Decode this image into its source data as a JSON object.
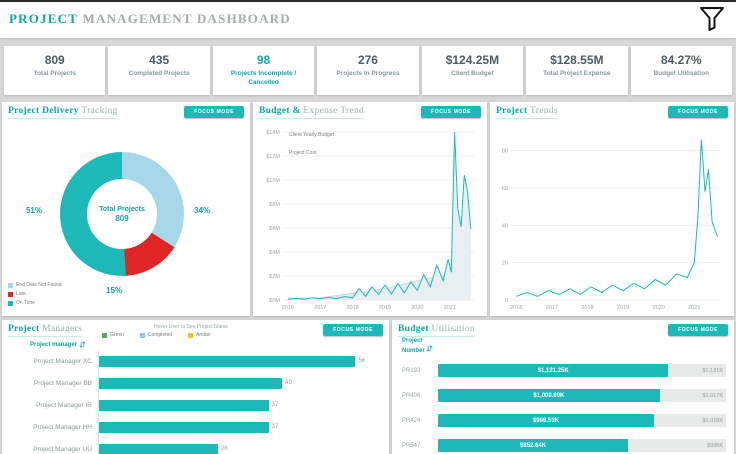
{
  "header": {
    "title_accent": "PROJECT",
    "title_rest": "MANAGEMENT DASHBOARD"
  },
  "focus_mode_label": "FOCUS MODE",
  "colors": {
    "teal": "#1db9b9",
    "light_blue": "#a7d8ea",
    "red": "#e02525",
    "green": "#4caf50",
    "amber": "#f2c80f",
    "completed_blue": "#8ecae6"
  },
  "kpis": [
    {
      "value": "809",
      "label": "Total Projects",
      "accent": false
    },
    {
      "value": "435",
      "label": "Completed Projects",
      "accent": false
    },
    {
      "value": "98",
      "label": "Projects Incomplete / Cancelled",
      "accent": true
    },
    {
      "value": "276",
      "label": "Projects In Progress",
      "accent": false
    },
    {
      "value": "$124.25M",
      "label": "Client Budget",
      "accent": false
    },
    {
      "value": "$128.55M",
      "label": "Total Project Expense",
      "accent": false
    },
    {
      "value": "84.27%",
      "label": "Budget Utilisation",
      "accent": false
    }
  ],
  "panels": {
    "delivery": {
      "title_accent": "Project Delivery",
      "title_rest": "Tracking"
    },
    "budget": {
      "title_accent": "Budget &",
      "title_rest": "Expense Trend"
    },
    "trends": {
      "title_accent": "Project",
      "title_rest": "Trends"
    },
    "managers": {
      "title_accent": "Project",
      "title_rest": "Managers"
    },
    "utilisation": {
      "title_accent": "Budget",
      "title_rest": "Utilisation"
    }
  },
  "chart_data": [
    {
      "type": "pie",
      "name": "project-delivery-tracking",
      "donut": true,
      "center_label": "Total Projects",
      "center_value": "809",
      "slices": [
        {
          "label": "End Date Not Found",
          "value": 34,
          "pct": "34%",
          "color": "#a7d8ea"
        },
        {
          "label": "Late",
          "value": 15,
          "pct": "15%",
          "color": "#e02525"
        },
        {
          "label": "On Time",
          "value": 51,
          "pct": "51%",
          "color": "#1db9b9"
        }
      ]
    },
    {
      "type": "line",
      "name": "budget-expense-trend",
      "title": "Budget & Expense Trend",
      "xlim": [
        2015.85,
        2021.75
      ],
      "ylim": [
        0,
        14
      ],
      "x_ticks": [
        {
          "v": 2016,
          "label": "2016"
        },
        {
          "v": 2017,
          "label": "2017"
        },
        {
          "v": 2018,
          "label": "2018"
        },
        {
          "v": 2019,
          "label": "2019"
        },
        {
          "v": 2020,
          "label": "2020"
        },
        {
          "v": 2021,
          "label": "2021"
        }
      ],
      "y_ticks": [
        {
          "v": 0,
          "label": "$0M"
        },
        {
          "v": 2,
          "label": "$2M"
        },
        {
          "v": 4,
          "label": "$4M"
        },
        {
          "v": 6,
          "label": "$6M"
        },
        {
          "v": 8,
          "label": "$8M"
        },
        {
          "v": 10,
          "label": "$10M"
        },
        {
          "v": 12,
          "label": "$12M"
        },
        {
          "v": 14,
          "label": "$14M"
        }
      ],
      "series": [
        {
          "name": "Client Yearly Budget",
          "color": "#c9d8de",
          "fill": "#e2ebee",
          "points": [
            [
              2016,
              0.12
            ],
            [
              2017,
              0.18
            ],
            [
              2018,
              0.55
            ],
            [
              2019,
              0.95
            ],
            [
              2020,
              1.6
            ],
            [
              2020.9,
              2.1
            ],
            [
              2021.05,
              1.8
            ],
            [
              2021.2,
              2.4
            ],
            [
              2021.4,
              2.0
            ],
            [
              2021.65,
              1.7
            ]
          ]
        },
        {
          "name": "Project Cost",
          "color": "#1db9b9",
          "fill": "#e9eff1",
          "points": [
            [
              2016,
              0.05
            ],
            [
              2016.25,
              0.15
            ],
            [
              2016.5,
              0.07
            ],
            [
              2016.75,
              0.18
            ],
            [
              2017,
              0.1
            ],
            [
              2017.25,
              0.22
            ],
            [
              2017.5,
              0.12
            ],
            [
              2017.75,
              0.28
            ],
            [
              2018,
              0.18
            ],
            [
              2018.2,
              0.95
            ],
            [
              2018.4,
              0.3
            ],
            [
              2018.6,
              1.1
            ],
            [
              2018.8,
              0.45
            ],
            [
              2019,
              1.25
            ],
            [
              2019.2,
              0.5
            ],
            [
              2019.4,
              1.35
            ],
            [
              2019.6,
              0.6
            ],
            [
              2019.8,
              1.5
            ],
            [
              2020,
              0.8
            ],
            [
              2020.2,
              2.1
            ],
            [
              2020.4,
              1.1
            ],
            [
              2020.6,
              2.9
            ],
            [
              2020.8,
              1.6
            ],
            [
              2020.95,
              3.4
            ],
            [
              2021.05,
              2.3
            ],
            [
              2021.15,
              14.0
            ],
            [
              2021.25,
              7.6
            ],
            [
              2021.35,
              6.1
            ],
            [
              2021.45,
              10.4
            ],
            [
              2021.55,
              9.1
            ],
            [
              2021.65,
              5.9
            ]
          ]
        }
      ]
    },
    {
      "type": "line",
      "name": "project-trends",
      "title": "Project Trends",
      "xlim": [
        2015.85,
        2021.75
      ],
      "ylim": [
        0,
        90
      ],
      "x_ticks": [
        {
          "v": 2016,
          "label": "2016"
        },
        {
          "v": 2017,
          "label": "2017"
        },
        {
          "v": 2018,
          "label": "2018"
        },
        {
          "v": 2019,
          "label": "2019"
        },
        {
          "v": 2020,
          "label": "2020"
        },
        {
          "v": 2021,
          "label": "2021"
        }
      ],
      "y_ticks": [
        {
          "v": 0,
          "label": "0"
        },
        {
          "v": 20,
          "label": "20"
        },
        {
          "v": 40,
          "label": "40"
        },
        {
          "v": 60,
          "label": "60"
        },
        {
          "v": 80,
          "label": "80"
        }
      ],
      "series": [
        {
          "name": "Projects",
          "color": "#1db9b9",
          "fill": "none",
          "points": [
            [
              2016,
              2
            ],
            [
              2016.3,
              4
            ],
            [
              2016.6,
              2
            ],
            [
              2016.9,
              5
            ],
            [
              2017.2,
              3
            ],
            [
              2017.5,
              6
            ],
            [
              2017.8,
              3
            ],
            [
              2018.1,
              7
            ],
            [
              2018.4,
              4
            ],
            [
              2018.7,
              8
            ],
            [
              2019,
              5
            ],
            [
              2019.3,
              9
            ],
            [
              2019.6,
              6
            ],
            [
              2019.9,
              11
            ],
            [
              2020.2,
              8
            ],
            [
              2020.5,
              14
            ],
            [
              2020.8,
              12
            ],
            [
              2021,
              20
            ],
            [
              2021.1,
              45
            ],
            [
              2021.2,
              86
            ],
            [
              2021.3,
              58
            ],
            [
              2021.4,
              70
            ],
            [
              2021.5,
              42
            ],
            [
              2021.65,
              34
            ]
          ]
        }
      ]
    },
    {
      "type": "bar",
      "name": "project-managers",
      "orientation": "horizontal",
      "note": "Hover Over to See Project Status",
      "column_header": "Project manager",
      "scale_max": 62,
      "legend": [
        {
          "label": "Green",
          "color": "#4caf50"
        },
        {
          "label": "Completed",
          "color": "#8ecae6"
        },
        {
          "label": "Amber",
          "color": "#f2c80f"
        }
      ],
      "rows": [
        {
          "label": "Project Manager XC",
          "value": 56
        },
        {
          "label": "Project Manager BB",
          "value": 40
        },
        {
          "label": "Project Manager IR",
          "value": 37
        },
        {
          "label": "Project Manager HH",
          "value": 37
        },
        {
          "label": "Project Manager UU",
          "value": 26
        }
      ]
    },
    {
      "type": "bar",
      "name": "budget-utilisation",
      "orientation": "horizontal",
      "column_header_line1": "Project",
      "column_header_line2": "Number",
      "rows": [
        {
          "id": "PR193",
          "cost": "$1,121.25K",
          "budget": "$1,121K",
          "bar_pct": 80
        },
        {
          "id": "PR406",
          "cost": "$1,000.89K",
          "budget": "$1,017K",
          "bar_pct": 77
        },
        {
          "id": "PR424",
          "cost": "$998.53K",
          "budget": "$1,015K",
          "bar_pct": 75
        },
        {
          "id": "PR547",
          "cost": "$852.64K",
          "budget": "$935K",
          "bar_pct": 66
        }
      ]
    }
  ]
}
